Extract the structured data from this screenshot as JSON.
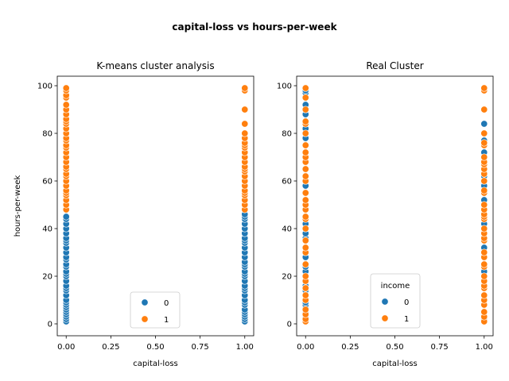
{
  "suptitle": "capital-loss vs hours-per-week",
  "colors": {
    "0": "#1f77b4",
    "1": "#ff7f0e"
  },
  "chart_data": [
    {
      "type": "scatter",
      "title": "K-means cluster analysis",
      "xlabel": "capital-loss",
      "ylabel": "hours-per-week",
      "xlim": [
        -0.05,
        1.05
      ],
      "ylim": [
        -5,
        104
      ],
      "xticks": [
        "0.00",
        "0.25",
        "0.50",
        "0.75",
        "1.00"
      ],
      "yticks": [
        "0",
        "20",
        "40",
        "60",
        "80",
        "100"
      ],
      "legend": {
        "title": "",
        "placement": "lower center",
        "entries": [
          "0",
          "1"
        ]
      },
      "series": [
        {
          "name": "0",
          "points": [
            [
              0,
              1
            ],
            [
              0,
              2
            ],
            [
              0,
              3
            ],
            [
              0,
              4
            ],
            [
              0,
              5
            ],
            [
              0,
              6
            ],
            [
              0,
              7
            ],
            [
              0,
              8
            ],
            [
              0,
              9
            ],
            [
              0,
              10
            ],
            [
              0,
              12
            ],
            [
              0,
              14
            ],
            [
              0,
              15
            ],
            [
              0,
              16
            ],
            [
              0,
              18
            ],
            [
              0,
              20
            ],
            [
              0,
              21
            ],
            [
              0,
              22
            ],
            [
              0,
              24
            ],
            [
              0,
              25
            ],
            [
              0,
              27
            ],
            [
              0,
              28
            ],
            [
              0,
              30
            ],
            [
              0,
              32
            ],
            [
              0,
              34
            ],
            [
              0,
              35
            ],
            [
              0,
              36
            ],
            [
              0,
              38
            ],
            [
              0,
              40
            ],
            [
              0,
              42
            ],
            [
              0,
              44
            ],
            [
              0,
              45
            ],
            [
              1,
              1
            ],
            [
              1,
              2
            ],
            [
              1,
              3
            ],
            [
              1,
              4
            ],
            [
              1,
              5
            ],
            [
              1,
              6
            ],
            [
              1,
              8
            ],
            [
              1,
              9
            ],
            [
              1,
              10
            ],
            [
              1,
              12
            ],
            [
              1,
              14
            ],
            [
              1,
              15
            ],
            [
              1,
              16
            ],
            [
              1,
              18
            ],
            [
              1,
              20
            ],
            [
              1,
              21
            ],
            [
              1,
              22
            ],
            [
              1,
              24
            ],
            [
              1,
              25
            ],
            [
              1,
              26
            ],
            [
              1,
              28
            ],
            [
              1,
              30
            ],
            [
              1,
              32
            ],
            [
              1,
              34
            ],
            [
              1,
              35
            ],
            [
              1,
              36
            ],
            [
              1,
              38
            ],
            [
              1,
              40
            ],
            [
              1,
              42
            ],
            [
              1,
              44
            ],
            [
              1,
              45
            ],
            [
              1,
              46
            ]
          ]
        },
        {
          "name": "1",
          "points": [
            [
              0,
              48
            ],
            [
              0,
              50
            ],
            [
              0,
              52
            ],
            [
              0,
              54
            ],
            [
              0,
              55
            ],
            [
              0,
              56
            ],
            [
              0,
              58
            ],
            [
              0,
              60
            ],
            [
              0,
              62
            ],
            [
              0,
              63
            ],
            [
              0,
              65
            ],
            [
              0,
              66
            ],
            [
              0,
              68
            ],
            [
              0,
              70
            ],
            [
              0,
              72
            ],
            [
              0,
              74
            ],
            [
              0,
              75
            ],
            [
              0,
              77
            ],
            [
              0,
              78
            ],
            [
              0,
              80
            ],
            [
              0,
              82
            ],
            [
              0,
              84
            ],
            [
              0,
              85
            ],
            [
              0,
              86
            ],
            [
              0,
              88
            ],
            [
              0,
              90
            ],
            [
              0,
              92
            ],
            [
              0,
              95
            ],
            [
              0,
              96
            ],
            [
              0,
              98
            ],
            [
              0,
              99
            ],
            [
              1,
              48
            ],
            [
              1,
              50
            ],
            [
              1,
              52
            ],
            [
              1,
              54
            ],
            [
              1,
              55
            ],
            [
              1,
              56
            ],
            [
              1,
              58
            ],
            [
              1,
              60
            ],
            [
              1,
              62
            ],
            [
              1,
              64
            ],
            [
              1,
              65
            ],
            [
              1,
              66
            ],
            [
              1,
              68
            ],
            [
              1,
              70
            ],
            [
              1,
              72
            ],
            [
              1,
              74
            ],
            [
              1,
              75
            ],
            [
              1,
              76
            ],
            [
              1,
              78
            ],
            [
              1,
              80
            ],
            [
              1,
              84
            ],
            [
              1,
              90
            ],
            [
              1,
              98
            ],
            [
              1,
              99
            ]
          ]
        }
      ]
    },
    {
      "type": "scatter",
      "title": "Real Cluster",
      "xlabel": "capital-loss",
      "ylabel": "",
      "xlim": [
        -0.05,
        1.05
      ],
      "ylim": [
        -5,
        104
      ],
      "xticks": [
        "0.00",
        "0.25",
        "0.50",
        "0.75",
        "1.00"
      ],
      "yticks": [
        "0",
        "20",
        "40",
        "60",
        "80",
        "100"
      ],
      "legend": {
        "title": "income",
        "placement": "lower center",
        "entries": [
          "0",
          "1"
        ]
      },
      "series": [
        {
          "name": "0",
          "points": [
            [
              0,
              1
            ],
            [
              0,
              2
            ],
            [
              0,
              3
            ],
            [
              0,
              4
            ],
            [
              0,
              5
            ],
            [
              0,
              6
            ],
            [
              0,
              7
            ],
            [
              0,
              8
            ],
            [
              0,
              9
            ],
            [
              0,
              10
            ],
            [
              0,
              12
            ],
            [
              0,
              14
            ],
            [
              0,
              15
            ],
            [
              0,
              16
            ],
            [
              0,
              18
            ],
            [
              0,
              20
            ],
            [
              0,
              22
            ],
            [
              0,
              24
            ],
            [
              0,
              25
            ],
            [
              0,
              28
            ],
            [
              0,
              30
            ],
            [
              0,
              32
            ],
            [
              0,
              35
            ],
            [
              0,
              36
            ],
            [
              0,
              38
            ],
            [
              0,
              40
            ],
            [
              0,
              42
            ],
            [
              0,
              45
            ],
            [
              0,
              48
            ],
            [
              0,
              50
            ],
            [
              0,
              52
            ],
            [
              0,
              55
            ],
            [
              0,
              58
            ],
            [
              0,
              60
            ],
            [
              0,
              62
            ],
            [
              0,
              65
            ],
            [
              0,
              68
            ],
            [
              0,
              70
            ],
            [
              0,
              72
            ],
            [
              0,
              75
            ],
            [
              0,
              78
            ],
            [
              0,
              80
            ],
            [
              0,
              82
            ],
            [
              0,
              85
            ],
            [
              0,
              88
            ],
            [
              0,
              90
            ],
            [
              0,
              92
            ],
            [
              0,
              95
            ],
            [
              0,
              97
            ],
            [
              0,
              98
            ],
            [
              0,
              99
            ],
            [
              1,
              1
            ],
            [
              1,
              2
            ],
            [
              1,
              5
            ],
            [
              1,
              8
            ],
            [
              1,
              10
            ],
            [
              1,
              12
            ],
            [
              1,
              15
            ],
            [
              1,
              20
            ],
            [
              1,
              22
            ],
            [
              1,
              25
            ],
            [
              1,
              28
            ],
            [
              1,
              30
            ],
            [
              1,
              32
            ],
            [
              1,
              35
            ],
            [
              1,
              38
            ],
            [
              1,
              40
            ],
            [
              1,
              42
            ],
            [
              1,
              45
            ],
            [
              1,
              48
            ],
            [
              1,
              50
            ],
            [
              1,
              52
            ],
            [
              1,
              55
            ],
            [
              1,
              58
            ],
            [
              1,
              60
            ],
            [
              1,
              62
            ],
            [
              1,
              65
            ],
            [
              1,
              70
            ],
            [
              1,
              72
            ],
            [
              1,
              75
            ],
            [
              1,
              77
            ],
            [
              1,
              84
            ]
          ]
        },
        {
          "name": "1",
          "points": [
            [
              0,
              1
            ],
            [
              0,
              2
            ],
            [
              0,
              4
            ],
            [
              0,
              6
            ],
            [
              0,
              10
            ],
            [
              0,
              12
            ],
            [
              0,
              15
            ],
            [
              0,
              18
            ],
            [
              0,
              20
            ],
            [
              0,
              25
            ],
            [
              0,
              30
            ],
            [
              0,
              32
            ],
            [
              0,
              35
            ],
            [
              0,
              40
            ],
            [
              0,
              44
            ],
            [
              0,
              45
            ],
            [
              0,
              48
            ],
            [
              0,
              50
            ],
            [
              0,
              52
            ],
            [
              0,
              55
            ],
            [
              0,
              60
            ],
            [
              0,
              62
            ],
            [
              0,
              65
            ],
            [
              0,
              68
            ],
            [
              0,
              70
            ],
            [
              0,
              72
            ],
            [
              0,
              75
            ],
            [
              0,
              80
            ],
            [
              0,
              84
            ],
            [
              0,
              85
            ],
            [
              0,
              90
            ],
            [
              0,
              95
            ],
            [
              0,
              99
            ],
            [
              1,
              1
            ],
            [
              1,
              3
            ],
            [
              1,
              5
            ],
            [
              1,
              8
            ],
            [
              1,
              10
            ],
            [
              1,
              12
            ],
            [
              1,
              15
            ],
            [
              1,
              16
            ],
            [
              1,
              18
            ],
            [
              1,
              20
            ],
            [
              1,
              24
            ],
            [
              1,
              25
            ],
            [
              1,
              28
            ],
            [
              1,
              30
            ],
            [
              1,
              35
            ],
            [
              1,
              36
            ],
            [
              1,
              38
            ],
            [
              1,
              40
            ],
            [
              1,
              44
            ],
            [
              1,
              45
            ],
            [
              1,
              46
            ],
            [
              1,
              48
            ],
            [
              1,
              50
            ],
            [
              1,
              55
            ],
            [
              1,
              56
            ],
            [
              1,
              60
            ],
            [
              1,
              63
            ],
            [
              1,
              65
            ],
            [
              1,
              67
            ],
            [
              1,
              68
            ],
            [
              1,
              70
            ],
            [
              1,
              75
            ],
            [
              1,
              76
            ],
            [
              1,
              80
            ],
            [
              1,
              90
            ],
            [
              1,
              98
            ],
            [
              1,
              99
            ]
          ]
        }
      ]
    }
  ]
}
